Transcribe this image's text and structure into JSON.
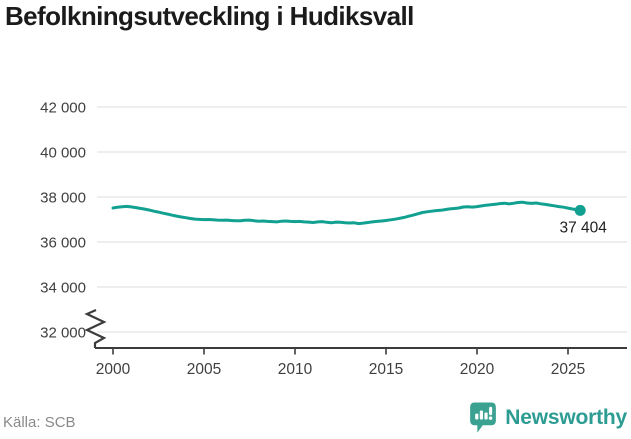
{
  "header": {
    "title": "Befolkningsutveckling i Hudiksvall"
  },
  "chart_data": {
    "type": "line",
    "title": "Befolkningsutveckling i Hudiksvall",
    "xlabel": "",
    "ylabel": "",
    "grid": "horizontal",
    "axis_break": true,
    "ylim": [
      32000,
      42000
    ],
    "xlim": [
      1999.2,
      2026.3
    ],
    "y_tick_values": [
      42000,
      40000,
      38000,
      36000,
      34000,
      32000
    ],
    "y_tick_labels": [
      "42 000",
      "40 000",
      "38 000",
      "36 000",
      "34 000",
      "32 000"
    ],
    "x_tick_values": [
      2000,
      2005,
      2010,
      2015,
      2020,
      2025
    ],
    "x_tick_labels": [
      "2000",
      "2005",
      "2010",
      "2015",
      "2020",
      "2025"
    ],
    "end_label": "37 404",
    "end_value": 37404,
    "line_color": "#12A091",
    "axis_color": "#3c3c3c",
    "grid_color": "#e3e3e3",
    "tick_text_color": "#404040",
    "end_label_color": "#222222",
    "series": [
      {
        "name": "Befolkning",
        "x": [
          2000.0,
          2000.25,
          2000.5,
          2000.75,
          2001.0,
          2001.25,
          2001.5,
          2001.75,
          2002.0,
          2002.25,
          2002.5,
          2002.75,
          2003.0,
          2003.25,
          2003.5,
          2003.75,
          2004.0,
          2004.25,
          2004.5,
          2004.75,
          2005.0,
          2005.25,
          2005.5,
          2005.75,
          2006.0,
          2006.25,
          2006.5,
          2006.75,
          2007.0,
          2007.25,
          2007.5,
          2007.75,
          2008.0,
          2008.25,
          2008.5,
          2008.75,
          2009.0,
          2009.25,
          2009.5,
          2009.75,
          2010.0,
          2010.25,
          2010.5,
          2010.75,
          2011.0,
          2011.25,
          2011.5,
          2011.75,
          2012.0,
          2012.25,
          2012.5,
          2012.75,
          2013.0,
          2013.25,
          2013.5,
          2013.75,
          2014.0,
          2014.25,
          2014.5,
          2014.75,
          2015.0,
          2015.25,
          2015.5,
          2015.75,
          2016.0,
          2016.25,
          2016.5,
          2016.75,
          2017.0,
          2017.25,
          2017.5,
          2017.75,
          2018.0,
          2018.25,
          2018.5,
          2018.75,
          2019.0,
          2019.25,
          2019.5,
          2019.75,
          2020.0,
          2020.25,
          2020.5,
          2020.75,
          2021.0,
          2021.25,
          2021.5,
          2021.75,
          2022.0,
          2022.25,
          2022.5,
          2022.75,
          2023.0,
          2023.25,
          2023.5,
          2023.75,
          2024.0,
          2024.25,
          2024.5,
          2024.75,
          2025.0,
          2025.25,
          2025.67
        ],
        "y": [
          37510,
          37545,
          37570,
          37580,
          37560,
          37530,
          37495,
          37460,
          37420,
          37370,
          37330,
          37280,
          37240,
          37190,
          37150,
          37110,
          37080,
          37045,
          37020,
          37005,
          36995,
          37000,
          36985,
          36975,
          36965,
          36975,
          36955,
          36945,
          36940,
          36965,
          36975,
          36945,
          36925,
          36935,
          36915,
          36905,
          36895,
          36925,
          36935,
          36915,
          36905,
          36915,
          36895,
          36885,
          36865,
          36895,
          36905,
          36875,
          36855,
          36885,
          36875,
          36855,
          36845,
          36855,
          36820,
          36840,
          36865,
          36895,
          36915,
          36935,
          36955,
          36985,
          37015,
          37055,
          37095,
          37145,
          37195,
          37255,
          37310,
          37340,
          37370,
          37395,
          37410,
          37440,
          37470,
          37490,
          37510,
          37555,
          37570,
          37550,
          37575,
          37605,
          37635,
          37655,
          37675,
          37705,
          37725,
          37695,
          37720,
          37755,
          37770,
          37735,
          37715,
          37735,
          37700,
          37670,
          37640,
          37610,
          37575,
          37545,
          37505,
          37465,
          37404
        ]
      }
    ]
  },
  "footer": {
    "source": "Källa: SCB",
    "brand": "Newsworthy",
    "brand_color": "#2D9C92",
    "logo_color": "#3BA292"
  }
}
